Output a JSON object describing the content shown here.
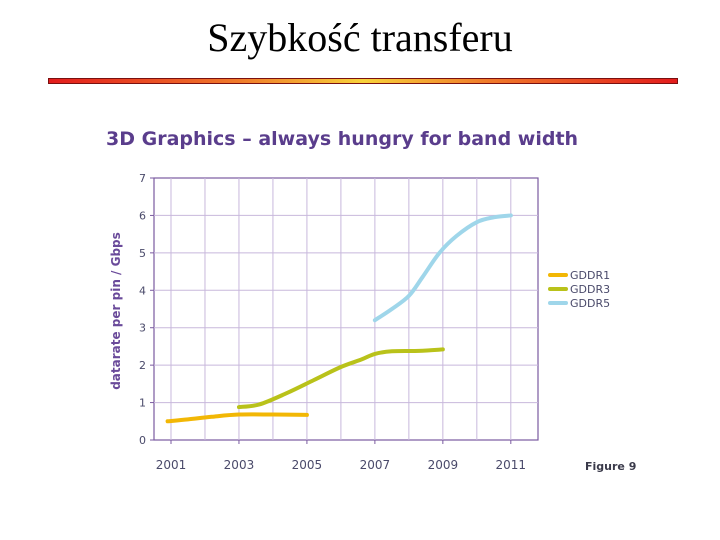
{
  "slide": {
    "title": "Szybkość transferu"
  },
  "chart_data": {
    "type": "line",
    "title": "3D Graphics – always hungry for band width",
    "xlabel": "",
    "ylabel": "datarate per pin / Gbps",
    "xlim": [
      2000.5,
      2011.8
    ],
    "ylim": [
      0,
      7
    ],
    "x_ticks": [
      "2001",
      "2003",
      "2005",
      "2007",
      "2009",
      "2011"
    ],
    "y_ticks": [
      "0",
      "1",
      "2",
      "3",
      "4",
      "5",
      "6",
      "7"
    ],
    "grid": true,
    "legend_position": "right",
    "figure_label": "Figure 9",
    "series": [
      {
        "name": "GDDR1",
        "color": "#f2b705",
        "x": [
          2000.9,
          2001.5,
          2002.2,
          2003.0,
          2004.0,
          2005.0
        ],
        "y": [
          0.5,
          0.55,
          0.62,
          0.68,
          0.68,
          0.67
        ]
      },
      {
        "name": "GDDR3",
        "color": "#b9c21a",
        "x": [
          2003.0,
          2003.6,
          2004.4,
          2005.2,
          2006.0,
          2006.6,
          2007.0,
          2007.5,
          2008.3,
          2009.0
        ],
        "y": [
          0.88,
          0.95,
          1.25,
          1.6,
          1.95,
          2.15,
          2.3,
          2.37,
          2.38,
          2.42
        ]
      },
      {
        "name": "GDDR5",
        "color": "#9fd6ea",
        "x": [
          2007.0,
          2007.5,
          2008.0,
          2008.4,
          2008.9,
          2009.4,
          2010.0,
          2010.5,
          2011.0
        ],
        "y": [
          3.2,
          3.5,
          3.85,
          4.35,
          5.0,
          5.45,
          5.82,
          5.95,
          6.0
        ]
      }
    ]
  }
}
